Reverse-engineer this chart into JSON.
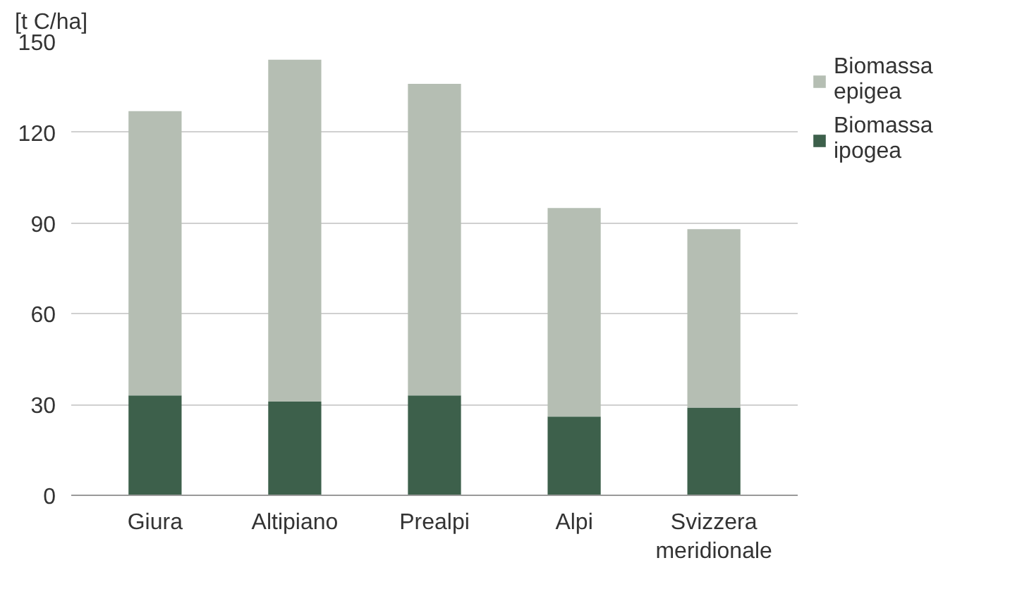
{
  "chart_data": {
    "type": "bar",
    "ylabel": "[t C/ha]",
    "stacked": true,
    "categories": [
      "Giura",
      "Altipiano",
      "Prealpi",
      "Alpi",
      "Svizzera meridionale"
    ],
    "series": [
      {
        "name": "Biomassa ipogea",
        "color": "#3d604b",
        "values": [
          33,
          31,
          33,
          26,
          29
        ]
      },
      {
        "name": "Biomassa epigea",
        "color": "#b5beb3",
        "values": [
          94,
          113,
          103,
          69,
          59
        ]
      }
    ],
    "ylim": [
      0,
      150
    ],
    "yticks": [
      0,
      30,
      60,
      90,
      120,
      150
    ],
    "grid": "y",
    "legend": "top right"
  }
}
